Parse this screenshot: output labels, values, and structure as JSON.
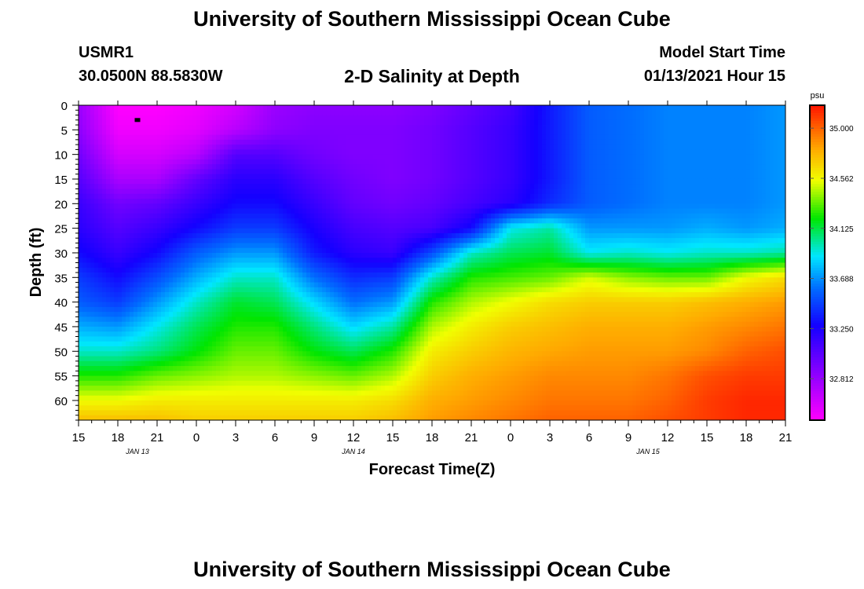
{
  "page": {
    "title_top": "University of Southern Mississippi Ocean Cube",
    "title_bottom": "University of Southern Mississippi Ocean Cube",
    "station_id": "USMR1",
    "station_coords": "30.0500N 88.5830W",
    "model_start_label": "Model Start Time",
    "model_start_value": "01/13/2021 Hour 15"
  },
  "chart_data": {
    "type": "heatmap",
    "title": "2-D Salinity at Depth",
    "xlabel": "Forecast Time(Z)",
    "ylabel": "Depth (ft)",
    "x_tick_labels": [
      "15",
      "18",
      "21",
      "0",
      "3",
      "6",
      "9",
      "12",
      "15",
      "18",
      "21",
      "0",
      "3",
      "6",
      "9",
      "12",
      "15",
      "18",
      "21"
    ],
    "x_range_hours": [
      0,
      54
    ],
    "date_labels": [
      {
        "label": "JAN 13",
        "hour": 4.5
      },
      {
        "label": "JAN 14",
        "hour": 21
      },
      {
        "label": "JAN 15",
        "hour": 43.5
      }
    ],
    "y_ticks": [
      0,
      5,
      10,
      15,
      20,
      25,
      30,
      35,
      40,
      45,
      50,
      55,
      60
    ],
    "ylim": [
      0,
      64
    ],
    "colorbar": {
      "unit": "psu",
      "ticks": [
        "35.000",
        "34.562",
        "34.125",
        "33.688",
        "33.250",
        "32.812"
      ],
      "range": [
        32.45,
        35.2
      ]
    },
    "marker": {
      "hour": 4.5,
      "depth": 3
    },
    "salinity_grid": {
      "hours": [
        0,
        3,
        6,
        9,
        12,
        15,
        18,
        21,
        24,
        27,
        30,
        33,
        36,
        39,
        42,
        45,
        48,
        51,
        54
      ],
      "depths": [
        0,
        5,
        10,
        15,
        20,
        25,
        30,
        35,
        40,
        45,
        50,
        55,
        60,
        64
      ],
      "values": [
        [
          32.8,
          32.45,
          32.45,
          32.5,
          32.6,
          32.8,
          32.85,
          32.85,
          32.85,
          32.9,
          33.0,
          33.1,
          33.35,
          33.55,
          33.6,
          33.65,
          33.65,
          33.65,
          33.7
        ],
        [
          32.85,
          32.5,
          32.5,
          32.55,
          32.7,
          32.85,
          32.9,
          32.9,
          32.9,
          32.95,
          33.05,
          33.15,
          33.35,
          33.55,
          33.6,
          33.65,
          33.65,
          33.65,
          33.7
        ],
        [
          32.95,
          32.6,
          32.6,
          32.7,
          33.05,
          33.05,
          32.95,
          32.9,
          32.9,
          32.95,
          33.05,
          33.15,
          33.35,
          33.55,
          33.6,
          33.65,
          33.65,
          33.65,
          33.7
        ],
        [
          33.05,
          32.75,
          32.75,
          33.0,
          33.2,
          33.2,
          33.05,
          32.95,
          32.9,
          32.95,
          33.05,
          33.15,
          33.35,
          33.55,
          33.6,
          33.65,
          33.65,
          33.65,
          33.7
        ],
        [
          33.15,
          32.95,
          33.0,
          33.15,
          33.3,
          33.3,
          33.15,
          33.0,
          32.95,
          33.0,
          33.1,
          33.2,
          33.4,
          33.55,
          33.6,
          33.65,
          33.65,
          33.65,
          33.7
        ],
        [
          33.2,
          33.05,
          33.15,
          33.3,
          33.45,
          33.45,
          33.25,
          33.1,
          33.05,
          33.1,
          33.3,
          33.9,
          34.0,
          33.7,
          33.7,
          33.7,
          33.75,
          33.7,
          33.75
        ],
        [
          33.3,
          33.15,
          33.3,
          33.55,
          33.7,
          33.7,
          33.35,
          33.2,
          33.15,
          33.5,
          33.95,
          34.1,
          34.15,
          33.9,
          33.95,
          33.9,
          33.95,
          33.95,
          34.0
        ],
        [
          33.45,
          33.3,
          33.5,
          33.75,
          33.95,
          33.95,
          33.6,
          33.4,
          33.45,
          33.95,
          34.25,
          34.3,
          34.35,
          34.5,
          34.4,
          34.35,
          34.35,
          34.55,
          34.65
        ],
        [
          33.55,
          33.45,
          33.7,
          33.95,
          34.15,
          34.1,
          33.85,
          33.6,
          33.7,
          34.25,
          34.45,
          34.55,
          34.65,
          34.7,
          34.7,
          34.7,
          34.75,
          34.8,
          34.85
        ],
        [
          33.75,
          33.7,
          33.9,
          34.1,
          34.25,
          34.25,
          34.05,
          33.85,
          34.0,
          34.45,
          34.6,
          34.7,
          34.75,
          34.8,
          34.8,
          34.8,
          34.85,
          34.9,
          34.95
        ],
        [
          33.95,
          33.95,
          34.05,
          34.2,
          34.35,
          34.35,
          34.2,
          34.1,
          34.25,
          34.6,
          34.7,
          34.78,
          34.82,
          34.85,
          34.85,
          34.85,
          34.9,
          35.0,
          35.05
        ],
        [
          34.25,
          34.25,
          34.35,
          34.4,
          34.45,
          34.45,
          34.4,
          34.35,
          34.45,
          34.7,
          34.8,
          34.85,
          34.9,
          34.9,
          34.9,
          34.95,
          35.05,
          35.1,
          35.1
        ],
        [
          34.55,
          34.55,
          34.6,
          34.6,
          34.6,
          34.6,
          34.6,
          34.6,
          34.65,
          34.8,
          34.85,
          34.9,
          34.95,
          34.95,
          34.95,
          35.0,
          35.1,
          35.15,
          35.15
        ],
        [
          34.75,
          34.75,
          34.75,
          34.7,
          34.7,
          34.7,
          34.7,
          34.7,
          34.75,
          34.85,
          34.9,
          34.95,
          35.0,
          35.0,
          35.0,
          35.05,
          35.1,
          35.15,
          35.15
        ]
      ]
    }
  }
}
